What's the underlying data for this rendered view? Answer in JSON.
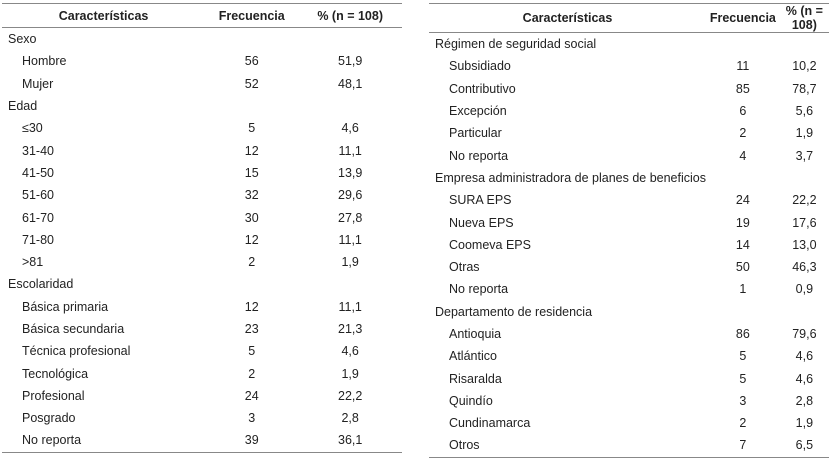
{
  "headers": [
    "Características",
    "Frecuencia",
    "% (n = 108)"
  ],
  "left_table": {
    "rows": [
      {
        "type": "group",
        "label": "Sexo"
      },
      {
        "type": "item",
        "label": "Hombre",
        "freq": "56",
        "pct": "51,9"
      },
      {
        "type": "item",
        "label": "Mujer",
        "freq": "52",
        "pct": "48,1"
      },
      {
        "type": "group",
        "label": "Edad"
      },
      {
        "type": "item",
        "label": "≤30",
        "freq": "5",
        "pct": "4,6"
      },
      {
        "type": "item",
        "label": "31-40",
        "freq": "12",
        "pct": "11,1"
      },
      {
        "type": "item",
        "label": "41-50",
        "freq": "15",
        "pct": "13,9"
      },
      {
        "type": "item",
        "label": "51-60",
        "freq": "32",
        "pct": "29,6"
      },
      {
        "type": "item",
        "label": "61-70",
        "freq": "30",
        "pct": "27,8"
      },
      {
        "type": "item",
        "label": "71-80",
        "freq": "12",
        "pct": "11,1"
      },
      {
        "type": "item",
        "label": ">81",
        "freq": "2",
        "pct": "1,9"
      },
      {
        "type": "group",
        "label": "Escolaridad"
      },
      {
        "type": "item",
        "label": "Básica primaria",
        "freq": "12",
        "pct": "11,1"
      },
      {
        "type": "item",
        "label": "Básica secundaria",
        "freq": "23",
        "pct": "21,3"
      },
      {
        "type": "item",
        "label": "Técnica profesional",
        "freq": "5",
        "pct": "4,6"
      },
      {
        "type": "item",
        "label": "Tecnológica",
        "freq": "2",
        "pct": "1,9"
      },
      {
        "type": "item",
        "label": "Profesional",
        "freq": "24",
        "pct": "22,2"
      },
      {
        "type": "item",
        "label": "Posgrado",
        "freq": "3",
        "pct": "2,8"
      },
      {
        "type": "item",
        "label": "No reporta",
        "freq": "39",
        "pct": "36,1"
      }
    ]
  },
  "right_table": {
    "rows": [
      {
        "type": "group",
        "label": "Régimen de seguridad social"
      },
      {
        "type": "item",
        "label": "Subsidiado",
        "freq": "11",
        "pct": "10,2"
      },
      {
        "type": "item",
        "label": "Contributivo",
        "freq": "85",
        "pct": "78,7"
      },
      {
        "type": "item",
        "label": "Excepción",
        "freq": "6",
        "pct": "5,6"
      },
      {
        "type": "item",
        "label": "Particular",
        "freq": "2",
        "pct": "1,9"
      },
      {
        "type": "item",
        "label": "No reporta",
        "freq": "4",
        "pct": "3,7"
      },
      {
        "type": "group",
        "label": "Empresa administradora de planes de beneficios"
      },
      {
        "type": "item",
        "label": "SURA EPS",
        "freq": "24",
        "pct": "22,2"
      },
      {
        "type": "item",
        "label": "Nueva EPS",
        "freq": "19",
        "pct": "17,6"
      },
      {
        "type": "item",
        "label": "Coomeva EPS",
        "freq": "14",
        "pct": "13,0"
      },
      {
        "type": "item",
        "label": "Otras",
        "freq": "50",
        "pct": "46,3"
      },
      {
        "type": "item",
        "label": "No reporta",
        "freq": "1",
        "pct": "0,9"
      },
      {
        "type": "group",
        "label": "Departamento de residencia"
      },
      {
        "type": "item",
        "label": "Antioquia",
        "freq": "86",
        "pct": "79,6"
      },
      {
        "type": "item",
        "label": "Atlántico",
        "freq": "5",
        "pct": "4,6"
      },
      {
        "type": "item",
        "label": "Risaralda",
        "freq": "5",
        "pct": "4,6"
      },
      {
        "type": "item",
        "label": "Quindío",
        "freq": "3",
        "pct": "2,8"
      },
      {
        "type": "item",
        "label": "Cundinamarca",
        "freq": "2",
        "pct": "1,9"
      },
      {
        "type": "item",
        "label": "Otros",
        "freq": "7",
        "pct": "6,5"
      }
    ]
  }
}
